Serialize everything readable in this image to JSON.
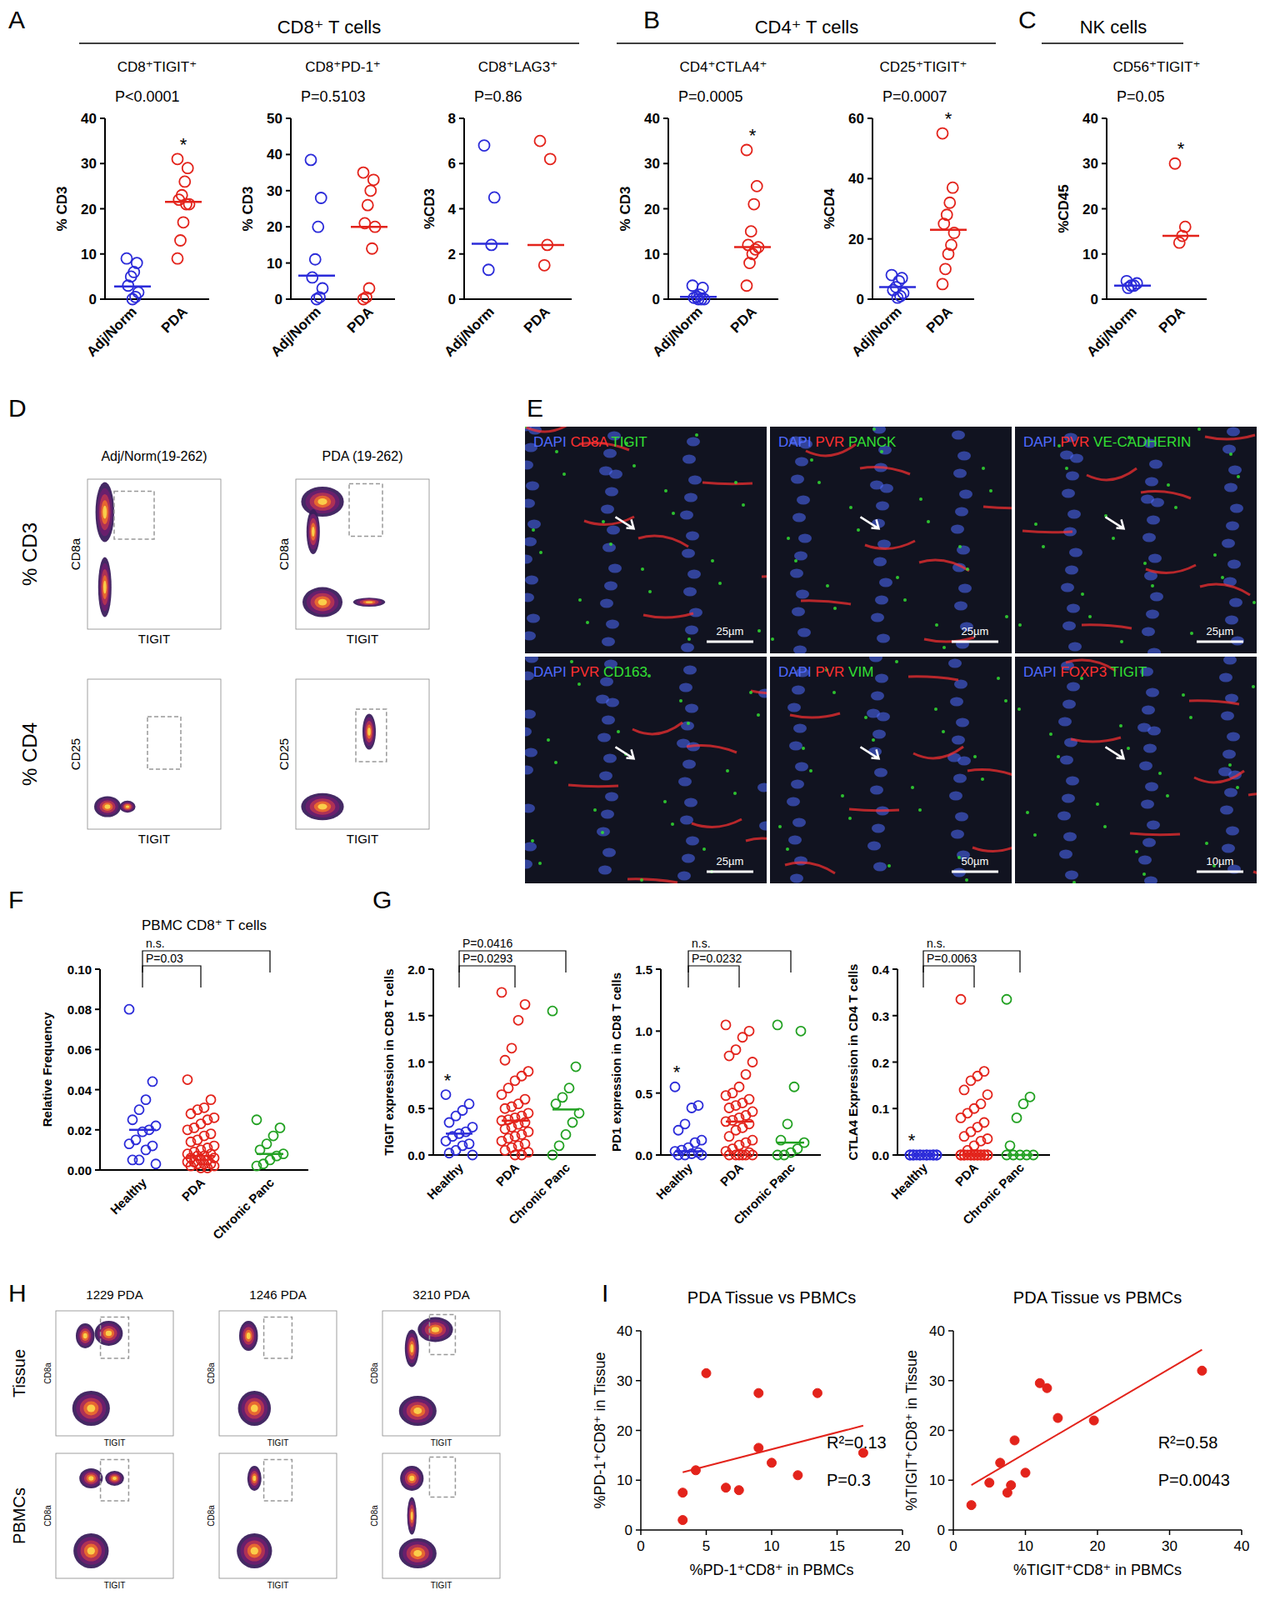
{
  "chart_data": [
    {
      "type": "dot",
      "title": "CD8⁺TIGIT⁺",
      "ylabel": "% CD3",
      "annotation": "P<0.0001",
      "marker": "open-circle",
      "ylim": [
        0,
        40
      ],
      "yticks": [
        0,
        10,
        20,
        30,
        40
      ],
      "series": [
        {
          "name": "Adj/Norm",
          "color": "#2b2bd9",
          "values": [
            9,
            8,
            6,
            5,
            3,
            1.5,
            0.5,
            0
          ],
          "median": 2.8
        },
        {
          "name": "PDA",
          "color": "#e3231b",
          "values": [
            31,
            29,
            26,
            23,
            22,
            21,
            21,
            17,
            13,
            9
          ],
          "median": 21.5,
          "star": "*"
        }
      ]
    },
    {
      "type": "dot",
      "title": "CD8⁺PD-1⁺",
      "ylabel": "% CD3",
      "annotation": "P=0.5103",
      "marker": "open-circle",
      "ylim": [
        0,
        50
      ],
      "yticks": [
        0,
        10,
        20,
        30,
        40,
        50
      ],
      "series": [
        {
          "name": "Adj/Norm",
          "color": "#2b2bd9",
          "values": [
            38.5,
            28,
            20,
            11,
            6,
            3,
            0.5,
            0
          ],
          "median": 6.5
        },
        {
          "name": "PDA",
          "color": "#e3231b",
          "values": [
            35,
            33,
            30,
            26,
            21,
            20,
            14,
            3,
            0.5,
            0
          ],
          "median": 20
        }
      ]
    },
    {
      "type": "dot",
      "title": "CD8⁺LAG3⁺",
      "ylabel": "%CD3",
      "annotation": "P=0.86",
      "marker": "open-circle",
      "ylim": [
        0,
        8
      ],
      "yticks": [
        0,
        2,
        4,
        6,
        8
      ],
      "series": [
        {
          "name": "Adj/Norm",
          "color": "#2b2bd9",
          "values": [
            6.8,
            4.5,
            2.4,
            1.3
          ],
          "median": 2.45
        },
        {
          "name": "PDA",
          "color": "#e3231b",
          "values": [
            7,
            6.2,
            2.4,
            1.5
          ],
          "median": 2.4
        }
      ]
    },
    {
      "type": "dot",
      "title": "CD4⁺CTLA4⁺",
      "ylabel": "% CD3",
      "annotation": "P=0.0005",
      "marker": "open-circle",
      "ylim": [
        0,
        40
      ],
      "yticks": [
        0,
        10,
        20,
        30,
        40
      ],
      "series": [
        {
          "name": "Adj/Norm",
          "color": "#2b2bd9",
          "values": [
            3,
            2.5,
            1,
            0.5,
            0.3,
            0,
            0,
            0
          ],
          "median": 0.5
        },
        {
          "name": "PDA",
          "color": "#e3231b",
          "values": [
            33,
            25,
            21,
            15,
            12,
            11.5,
            11,
            10,
            8,
            3
          ],
          "median": 11.5,
          "star": "*"
        }
      ]
    },
    {
      "type": "dot",
      "title": "CD25⁺TIGIT⁺",
      "ylabel": "%CD4",
      "annotation": "P=0.0007",
      "marker": "open-circle",
      "ylim": [
        0,
        60
      ],
      "yticks": [
        0,
        20,
        40,
        60
      ],
      "series": [
        {
          "name": "Adj/Norm",
          "color": "#2b2bd9",
          "values": [
            8,
            7,
            6,
            4,
            3,
            2,
            1,
            0.5
          ],
          "median": 4
        },
        {
          "name": "PDA",
          "color": "#e3231b",
          "values": [
            55,
            37,
            32,
            28,
            25,
            22,
            18,
            15,
            10,
            5
          ],
          "median": 23,
          "star": "*"
        }
      ]
    },
    {
      "type": "dot",
      "title": "CD56⁺TIGIT⁺",
      "ylabel": "%CD45",
      "annotation": "P=0.05",
      "marker": "open-circle",
      "ylim": [
        0,
        40
      ],
      "yticks": [
        0,
        10,
        20,
        30,
        40
      ],
      "series": [
        {
          "name": "Adj/Norm",
          "color": "#2b2bd9",
          "values": [
            4,
            3.5,
            3,
            3,
            2.5
          ],
          "median": 3
        },
        {
          "name": "PDA",
          "color": "#e3231b",
          "values": [
            30,
            16,
            14,
            12.5
          ],
          "median": 14,
          "star": "*"
        }
      ]
    },
    {
      "type": "dot",
      "title": "PBMC CD8⁺ T cells",
      "ylabel": "Relative Frequency",
      "marker": "open-circle",
      "ylim": [
        0,
        0.1
      ],
      "yticks": [
        {
          "value": 0,
          "label": "0.00"
        },
        {
          "value": 0.02,
          "label": "0.02"
        },
        {
          "value": 0.04,
          "label": "0.04"
        },
        {
          "value": 0.06,
          "label": "0.06"
        },
        {
          "value": 0.08,
          "label": "0.08"
        },
        {
          "value": 0.1,
          "label": "0.10"
        }
      ],
      "series": [
        {
          "name": "Healthy",
          "color": "#2b2bd9",
          "values": [
            0.08,
            0.044,
            0.035,
            0.03,
            0.025,
            0.022,
            0.02,
            0.019,
            0.015,
            0.013,
            0.012,
            0.01,
            0.005,
            0.005,
            0.003
          ],
          "median": 0.02
        },
        {
          "name": "PDA",
          "color": "#e3231b",
          "values": [
            0.045,
            0.035,
            0.031,
            0.03,
            0.028,
            0.026,
            0.025,
            0.023,
            0.021,
            0.02,
            0.018,
            0.017,
            0.015,
            0.014,
            0.012,
            0.011,
            0.01,
            0.009,
            0.008,
            0.008,
            0.007,
            0.007,
            0.006,
            0.006,
            0.005,
            0.005,
            0.004,
            0.004,
            0.003,
            0.003,
            0.003,
            0.002,
            0.002,
            0.001,
            0.001
          ],
          "median": 0.007
        },
        {
          "name": "Chronic Panc",
          "color": "#22a122",
          "values": [
            0.025,
            0.021,
            0.017,
            0.013,
            0.01,
            0.008,
            0.007,
            0.005,
            0.003,
            0.002
          ],
          "median": 0.008
        }
      ],
      "comparisons": [
        {
          "label": "P=0.03",
          "groups": [
            "Healthy",
            "PDA"
          ]
        },
        {
          "label": "n.s.",
          "groups": [
            "Healthy",
            "Chronic Panc"
          ]
        }
      ]
    },
    {
      "type": "dot",
      "ylabel": "TIGIT expression in CD8 T cells",
      "marker": "open-circle",
      "ylim": [
        0,
        2
      ],
      "yticks": [
        {
          "value": 0,
          "label": "0.0"
        },
        0.5,
        {
          "value": 1,
          "label": "1.0"
        },
        1.5,
        {
          "value": 2,
          "label": "2.0"
        }
      ],
      "series": [
        {
          "name": "Healthy",
          "color": "#2b2bd9",
          "values": [
            0.65,
            0.55,
            0.48,
            0.42,
            0.35,
            0.3,
            0.25,
            0.23,
            0.2,
            0.15,
            0.12,
            0.1,
            0.05,
            0.02,
            0
          ],
          "median": 0.23,
          "star": "*"
        },
        {
          "name": "PDA",
          "color": "#e3231b",
          "values": [
            1.75,
            1.62,
            1.45,
            1.15,
            1.02,
            0.9,
            0.85,
            0.8,
            0.72,
            0.65,
            0.6,
            0.55,
            0.52,
            0.5,
            0.45,
            0.42,
            0.4,
            0.38,
            0.37,
            0.35,
            0.33,
            0.3,
            0.28,
            0.25,
            0.22,
            0.2,
            0.18,
            0.15,
            0.12,
            0.1,
            0.08,
            0.05,
            0.03,
            0,
            0
          ],
          "median": 0.37
        },
        {
          "name": "Chronic Panc",
          "color": "#22a122",
          "values": [
            1.55,
            0.95,
            0.72,
            0.62,
            0.55,
            0.45,
            0.35,
            0.22,
            0.1,
            0
          ],
          "median": 0.49
        }
      ],
      "comparisons": [
        {
          "label": "P=0.0293",
          "groups": [
            "Healthy",
            "PDA"
          ]
        },
        {
          "label": "P=0.0416",
          "groups": [
            "Healthy",
            "Chronic Panc"
          ]
        }
      ]
    },
    {
      "type": "dot",
      "ylabel": "PD1 expression in CD8 T cells",
      "marker": "open-circle",
      "ylim": [
        0,
        1.5
      ],
      "yticks": [
        {
          "value": 0,
          "label": "0.0"
        },
        0.5,
        {
          "value": 1,
          "label": "1.0"
        },
        1.5
      ],
      "series": [
        {
          "name": "Healthy",
          "color": "#2b2bd9",
          "values": [
            0.55,
            0.4,
            0.38,
            0.25,
            0.2,
            0.12,
            0.1,
            0.06,
            0.04,
            0.03,
            0.02,
            0.01,
            0,
            0,
            0
          ],
          "median": 0.03,
          "star": "*"
        },
        {
          "name": "PDA",
          "color": "#e3231b",
          "values": [
            1.05,
            1,
            0.95,
            0.85,
            0.8,
            0.75,
            0.65,
            0.55,
            0.5,
            0.48,
            0.45,
            0.42,
            0.4,
            0.38,
            0.35,
            0.32,
            0.3,
            0.28,
            0.27,
            0.25,
            0.22,
            0.2,
            0.15,
            0.12,
            0.1,
            0.08,
            0.05,
            0.03,
            0.02,
            0,
            0,
            0,
            0,
            0,
            0
          ],
          "median": 0.27
        },
        {
          "name": "Chronic Panc",
          "color": "#22a122",
          "values": [
            1.05,
            1,
            0.55,
            0.25,
            0.12,
            0.1,
            0.05,
            0.02,
            0,
            0
          ],
          "median": 0.1
        }
      ],
      "comparisons": [
        {
          "label": "P=0.0232",
          "groups": [
            "Healthy",
            "PDA"
          ]
        },
        {
          "label": "n.s.",
          "groups": [
            "Healthy",
            "Chronic Panc"
          ]
        }
      ]
    },
    {
      "type": "dot",
      "ylabel": "CTLA4 Expression in CD4 T cells",
      "marker": "open-circle",
      "ylim": [
        0,
        0.4
      ],
      "yticks": [
        {
          "value": 0,
          "label": "0.0"
        },
        0.1,
        0.2,
        0.3,
        0.4
      ],
      "series": [
        {
          "name": "Healthy",
          "color": "#2b2bd9",
          "values": [
            0,
            0,
            0,
            0,
            0,
            0,
            0,
            0,
            0,
            0,
            0,
            0,
            0,
            0,
            0
          ],
          "median": 0,
          "star": "*"
        },
        {
          "name": "PDA",
          "color": "#e3231b",
          "values": [
            0.335,
            0.18,
            0.17,
            0.16,
            0.14,
            0.13,
            0.11,
            0.1,
            0.09,
            0.08,
            0.07,
            0.06,
            0.05,
            0.04,
            0.035,
            0.03,
            0.02,
            0.01,
            0,
            0,
            0,
            0,
            0,
            0,
            0,
            0,
            0,
            0,
            0,
            0,
            0,
            0,
            0,
            0,
            0
          ],
          "median": 0
        },
        {
          "name": "Chronic Panc",
          "color": "#22a122",
          "values": [
            0.335,
            0.125,
            0.11,
            0.08,
            0.02,
            0,
            0,
            0,
            0,
            0
          ],
          "median": 0
        }
      ],
      "comparisons": [
        {
          "label": "P=0.0063",
          "groups": [
            "Healthy",
            "PDA"
          ]
        },
        {
          "label": "n.s.",
          "groups": [
            "Healthy",
            "Chronic Panc"
          ]
        }
      ]
    },
    {
      "type": "scatter",
      "title": "PDA Tissue vs PBMCs",
      "xlabel": "%PD-1⁺CD8⁺ in PBMCs",
      "ylabel": "%PD-1⁺CD8⁺ in Tissue",
      "marker": "circle",
      "xlim": [
        0,
        20
      ],
      "xticks": [
        0,
        5,
        10,
        15,
        20
      ],
      "ylim": [
        0,
        40
      ],
      "yticks": [
        0,
        10,
        20,
        30,
        40
      ],
      "series": [
        {
          "color": "#e3231b",
          "x": [
            3.2,
            3.2,
            4.2,
            5,
            6.5,
            7.5,
            9,
            9,
            10,
            12,
            13.5,
            17
          ],
          "values": [
            7.5,
            2,
            12,
            31.5,
            8.5,
            8,
            27.5,
            16.5,
            13.5,
            11,
            27.5,
            15.5
          ]
        }
      ],
      "fit": {
        "slope": 0.68,
        "intercept": 9.4
      },
      "annotations": [
        "R²=0.13",
        "P=0.3"
      ]
    },
    {
      "type": "scatter",
      "title": "PDA Tissue vs PBMCs",
      "xlabel": "%TIGIT⁺CD8⁺ in PBMCs",
      "ylabel": "%TIGIT⁺CD8⁺ in Tissue",
      "marker": "circle",
      "xlim": [
        0,
        40
      ],
      "xticks": [
        0,
        10,
        20,
        30,
        40
      ],
      "ylim": [
        0,
        40
      ],
      "yticks": [
        0,
        10,
        20,
        30,
        40
      ],
      "series": [
        {
          "color": "#e3231b",
          "x": [
            2.5,
            5,
            6.5,
            7.5,
            8,
            8.5,
            10,
            12,
            13,
            14.5,
            19.5,
            34.5
          ],
          "values": [
            5,
            9.5,
            13.5,
            7.5,
            9,
            18,
            11.5,
            29.5,
            28.5,
            22.5,
            22,
            32
          ]
        }
      ],
      "fit": {
        "slope": 0.85,
        "intercept": 6.9
      },
      "annotations": [
        "R²=0.58",
        "P=0.0043"
      ]
    }
  ],
  "figure": {
    "letters": [
      "A",
      "B",
      "C",
      "D",
      "E",
      "F",
      "G",
      "H",
      "I"
    ],
    "headers": [
      "CD8⁺ T cells",
      "CD4⁺ T cells",
      "NK cells"
    ],
    "flow_d": {
      "columns": [
        "Adj/Norm(19-262)",
        "PDA (19-262)"
      ],
      "rows": [
        {
          "label": "% CD3",
          "y": "CD8a",
          "x": "TIGIT"
        },
        {
          "label": "% CD4",
          "y": "CD25",
          "x": "TIGIT"
        }
      ]
    },
    "images": [
      {
        "stains": [
          {
            "text": "DAPI",
            "color": "#4f6bff"
          },
          {
            "text": "CD8A",
            "color": "#ff3030"
          },
          {
            "text": "TIGIT",
            "color": "#33e033"
          }
        ],
        "scale": "25µm"
      },
      {
        "stains": [
          {
            "text": "DAPI",
            "color": "#4f6bff"
          },
          {
            "text": "PVR",
            "color": "#ff3030"
          },
          {
            "text": "PANCK",
            "color": "#33e033"
          }
        ],
        "scale": "25µm"
      },
      {
        "stains": [
          {
            "text": "DAPI",
            "color": "#4f6bff"
          },
          {
            "text": "PVR",
            "color": "#ff3030"
          },
          {
            "text": "VE-CADHERIN",
            "color": "#33e033"
          }
        ],
        "scale": "25µm"
      },
      {
        "stains": [
          {
            "text": "DAPI",
            "color": "#4f6bff"
          },
          {
            "text": "PVR",
            "color": "#ff3030"
          },
          {
            "text": "CD163",
            "color": "#33e033"
          }
        ],
        "scale": "25µm"
      },
      {
        "stains": [
          {
            "text": "DAPI",
            "color": "#4f6bff"
          },
          {
            "text": "PVR",
            "color": "#ff3030"
          },
          {
            "text": "VIM",
            "color": "#33e033"
          }
        ],
        "scale": "50µm"
      },
      {
        "stains": [
          {
            "text": "DAPI",
            "color": "#4f6bff"
          },
          {
            "text": "FOXP3",
            "color": "#ff3030"
          },
          {
            "text": "TIGIT",
            "color": "#33e033"
          }
        ],
        "scale": "10µm"
      }
    ],
    "flow_h": {
      "columns": [
        "1229 PDA",
        "1246 PDA",
        "3210 PDA"
      ],
      "rows": [
        "Tissue",
        "PBMCs"
      ],
      "y": "CD8a",
      "x": "TIGIT"
    }
  }
}
